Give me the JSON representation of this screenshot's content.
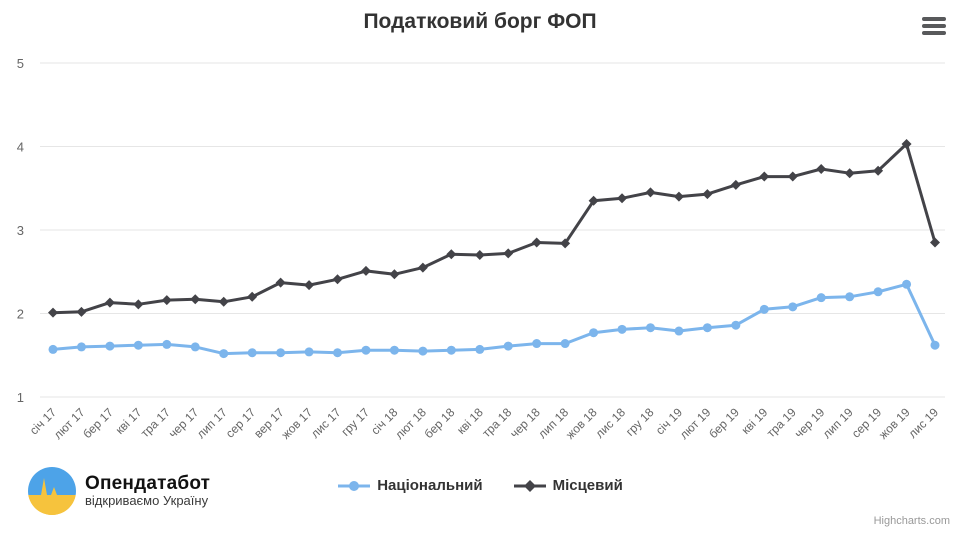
{
  "chart_data": {
    "type": "line",
    "title": "Податковий борг ФОП",
    "xlabel": "",
    "ylabel": "",
    "ylim": [
      1,
      5
    ],
    "yticks": [
      1,
      2,
      3,
      4,
      5
    ],
    "grid": true,
    "legend_position": "bottom-center",
    "categories": [
      "січ 17",
      "лют 17",
      "бер 17",
      "кві 17",
      "тра 17",
      "чер 17",
      "лип 17",
      "сер 17",
      "вер 17",
      "жов 17",
      "лис 17",
      "гру 17",
      "січ 18",
      "лют 18",
      "бер 18",
      "кві 18",
      "тра 18",
      "чер 18",
      "лип 18",
      "жов 18",
      "лис 18",
      "гру 18",
      "січ 19",
      "лют 19",
      "бер 19",
      "кві 19",
      "тра 19",
      "чер 19",
      "лип 19",
      "сер 19",
      "жов 19",
      "лис 19"
    ],
    "series": [
      {
        "name": "Національний",
        "color": "#7cb5ec",
        "marker": "circle",
        "values": [
          1.57,
          1.6,
          1.61,
          1.62,
          1.63,
          1.6,
          1.52,
          1.53,
          1.53,
          1.54,
          1.53,
          1.56,
          1.56,
          1.55,
          1.56,
          1.57,
          1.61,
          1.64,
          1.64,
          1.77,
          1.81,
          1.83,
          1.79,
          1.83,
          1.86,
          2.05,
          2.08,
          2.19,
          2.2,
          2.26,
          2.35,
          1.62
        ]
      },
      {
        "name": "Місцевий",
        "color": "#434348",
        "marker": "diamond",
        "values": [
          2.01,
          2.02,
          2.13,
          2.11,
          2.16,
          2.17,
          2.14,
          2.2,
          2.37,
          2.34,
          2.41,
          2.51,
          2.47,
          2.55,
          2.71,
          2.7,
          2.72,
          2.85,
          2.84,
          3.35,
          3.38,
          3.45,
          3.4,
          3.43,
          3.54,
          3.64,
          3.64,
          3.73,
          3.68,
          3.71,
          4.03,
          2.85
        ]
      }
    ]
  },
  "icons": {
    "menu": "hamburger-icon"
  },
  "colors": {
    "series_national": "#7cb5ec",
    "series_local": "#434348",
    "gridline": "#e6e6e6",
    "axis_label": "#666666",
    "title_text": "#333333",
    "logo_blue": "#4da3e8",
    "logo_yellow": "#f6c33d"
  },
  "footer": {
    "logo_title": "Опендатабот",
    "logo_subtitle": "відкриваємо Україну",
    "credits": "Highcharts.com"
  }
}
